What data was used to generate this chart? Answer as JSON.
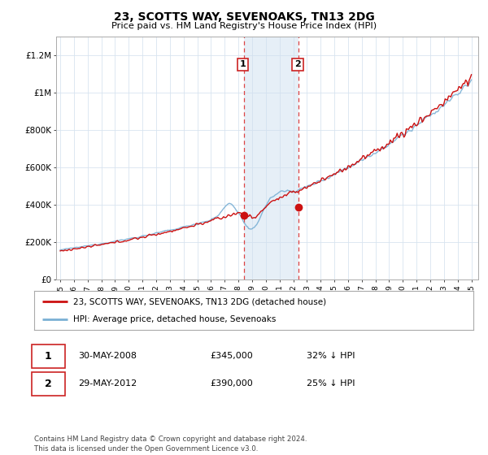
{
  "title": "23, SCOTTS WAY, SEVENOAKS, TN13 2DG",
  "subtitle": "Price paid vs. HM Land Registry's House Price Index (HPI)",
  "ylim": [
    0,
    1300000
  ],
  "yticks": [
    0,
    200000,
    400000,
    600000,
    800000,
    1000000,
    1200000
  ],
  "ytick_labels": [
    "£0",
    "£200K",
    "£400K",
    "£600K",
    "£800K",
    "£1M",
    "£1.2M"
  ],
  "grid_color": "#d8e4f0",
  "hpi_color": "#7ab0d4",
  "price_color": "#cc1111",
  "sale1_date": 2008.38,
  "sale1_price": 345000,
  "sale1_label": "1",
  "sale2_date": 2012.38,
  "sale2_price": 390000,
  "sale2_label": "2",
  "shade_color": "#cfe0f0",
  "shade_alpha": 0.5,
  "legend_line1": "23, SCOTTS WAY, SEVENOAKS, TN13 2DG (detached house)",
  "legend_line2": "HPI: Average price, detached house, Sevenoaks",
  "footer": "Contains HM Land Registry data © Crown copyright and database right 2024.\nThis data is licensed under the Open Government Licence v3.0."
}
